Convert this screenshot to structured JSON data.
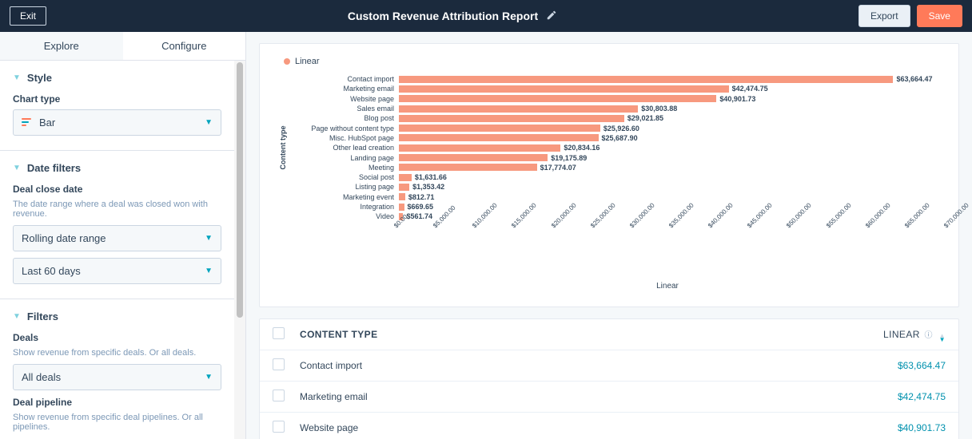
{
  "topbar": {
    "exit": "Exit",
    "title": "Custom Revenue Attribution Report",
    "export": "Export",
    "save": "Save"
  },
  "tabs": {
    "explore": "Explore",
    "configure": "Configure",
    "active": "configure"
  },
  "style_section": {
    "title": "Style",
    "chart_type_label": "Chart type",
    "chart_type_value": "Bar",
    "bar_icon_colors": [
      "#ff7a59",
      "#00a4bd",
      "#ff7a59"
    ]
  },
  "date_filters": {
    "title": "Date filters",
    "label": "Deal close date",
    "help": "The date range where a deal was closed won with revenue.",
    "select1": "Rolling date range",
    "select2": "Last 60 days"
  },
  "filters": {
    "title": "Filters",
    "deals_label": "Deals",
    "deals_help": "Show revenue from specific deals. Or all deals.",
    "deals_value": "All deals",
    "pipeline_label": "Deal pipeline",
    "pipeline_help": "Show revenue from specific deal pipelines. Or all pipelines."
  },
  "chart": {
    "legend_label": "Linear",
    "legend_color": "#f7997f",
    "bar_color": "#f7997f",
    "ylabel": "Content type",
    "xlabel": "Linear",
    "xmax": 70000,
    "xtick_step": 5000,
    "xtick_labels": [
      "$0.00",
      "$5,000.00",
      "$10,000.00",
      "$15,000.00",
      "$20,000.00",
      "$25,000.00",
      "$30,000.00",
      "$35,000.00",
      "$40,000.00",
      "$45,000.00",
      "$50,000.00",
      "$55,000.00",
      "$60,000.00",
      "$65,000.00",
      "$70,000.00"
    ],
    "items": [
      {
        "label": "Contact import",
        "value": 63664.47,
        "display": "$63,664.47"
      },
      {
        "label": "Marketing email",
        "value": 42474.75,
        "display": "$42,474.75"
      },
      {
        "label": "Website page",
        "value": 40901.73,
        "display": "$40,901.73"
      },
      {
        "label": "Sales email",
        "value": 30803.88,
        "display": "$30,803.88"
      },
      {
        "label": "Blog post",
        "value": 29021.85,
        "display": "$29,021.85"
      },
      {
        "label": "Page without content type",
        "value": 25926.6,
        "display": "$25,926.60"
      },
      {
        "label": "Misc. HubSpot page",
        "value": 25687.9,
        "display": "$25,687.90"
      },
      {
        "label": "Other lead creation",
        "value": 20834.16,
        "display": "$20,834.16"
      },
      {
        "label": "Landing page",
        "value": 19175.89,
        "display": "$19,175.89"
      },
      {
        "label": "Meeting",
        "value": 17774.07,
        "display": "$17,774.07"
      },
      {
        "label": "Social post",
        "value": 1631.66,
        "display": "$1,631.66"
      },
      {
        "label": "Listing page",
        "value": 1353.42,
        "display": "$1,353.42"
      },
      {
        "label": "Marketing event",
        "value": 812.71,
        "display": "$812.71"
      },
      {
        "label": "Integration",
        "value": 669.65,
        "display": "$669.65"
      },
      {
        "label": "Video",
        "value": 561.74,
        "display": "$561.74"
      }
    ]
  },
  "table": {
    "header_col1": "CONTENT TYPE",
    "header_col2": "LINEAR",
    "link_color": "#0091ae",
    "rows": [
      {
        "c1": "Contact import",
        "c2": "$63,664.47"
      },
      {
        "c1": "Marketing email",
        "c2": "$42,474.75"
      },
      {
        "c1": "Website page",
        "c2": "$40,901.73"
      }
    ]
  }
}
